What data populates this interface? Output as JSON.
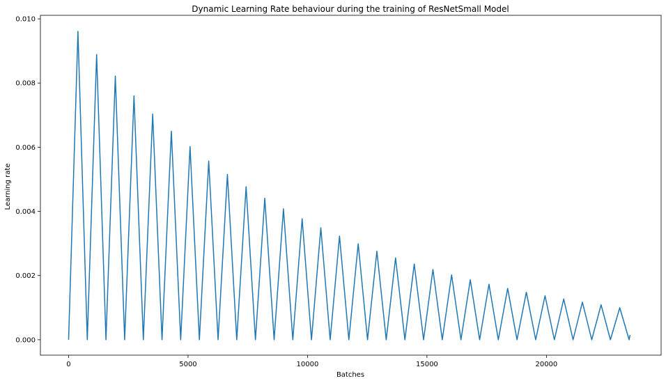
{
  "chart_data": {
    "type": "line",
    "title": "Dynamic Learning Rate behaviour during the training of ResNetSmall Model",
    "xlabel": "Batches",
    "ylabel": "Learning rate",
    "xlim": [
      -1180,
      24800
    ],
    "ylim": [
      -0.00048,
      0.01011
    ],
    "grid": false,
    "line_color": "#1f77b4",
    "x_ticks": [
      0,
      5000,
      10000,
      15000,
      20000
    ],
    "x_tick_labels": [
      "0",
      "5000",
      "10000",
      "15000",
      "20000"
    ],
    "y_ticks": [
      0.0,
      0.002,
      0.004,
      0.006,
      0.008,
      0.01
    ],
    "y_tick_labels": [
      "0.000",
      "0.002",
      "0.004",
      "0.006",
      "0.008",
      "0.010"
    ],
    "series": [
      {
        "x": [
          0,
          391,
          782,
          1173,
          1564,
          1955,
          2346,
          2737,
          3128,
          3519,
          3910,
          4301,
          4692,
          5083,
          5474,
          5865,
          6256,
          6647,
          7038,
          7429,
          7820,
          8211,
          8602,
          8993,
          9384,
          9775,
          10166,
          10557,
          10948,
          11339,
          11730,
          12121,
          12512,
          12903,
          13294,
          13685,
          14076,
          14467,
          14858,
          15249,
          15640,
          16031,
          16422,
          16813,
          17204,
          17595,
          17986,
          18377,
          18768,
          19159,
          19550,
          19941,
          20332,
          20723,
          21114,
          21505,
          21896,
          22287,
          22678,
          23069,
          23460,
          23500
        ],
        "y": [
          0.0,
          0.00961,
          0.0,
          0.00889,
          0.0,
          0.00822,
          0.0,
          0.0076,
          0.0,
          0.00703,
          0.0,
          0.0065,
          0.0,
          0.00602,
          0.0,
          0.00557,
          0.0,
          0.00515,
          0.0,
          0.00477,
          0.0,
          0.00441,
          0.0,
          0.00408,
          0.0,
          0.00377,
          0.0,
          0.00349,
          0.0,
          0.00323,
          0.0,
          0.00299,
          0.0,
          0.00276,
          0.0,
          0.00255,
          0.0,
          0.00236,
          0.0,
          0.00219,
          0.0,
          0.00202,
          0.0,
          0.00187,
          0.0,
          0.00173,
          0.0,
          0.0016,
          0.0,
          0.00148,
          0.0,
          0.00137,
          0.0,
          0.00127,
          0.0,
          0.00117,
          0.0,
          0.00109,
          0.0,
          0.001,
          0.0,
          0.00015
        ]
      }
    ]
  }
}
